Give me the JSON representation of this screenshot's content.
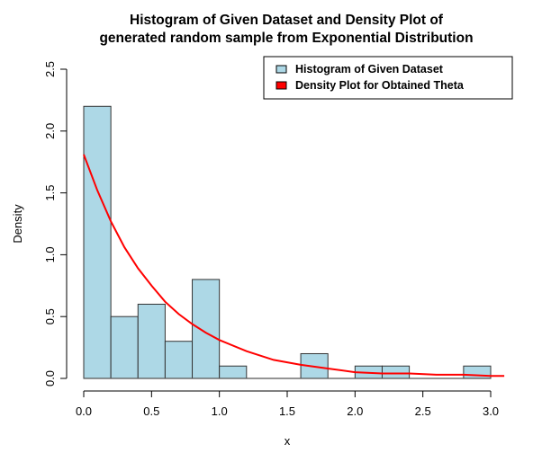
{
  "chart_data": {
    "type": "bar",
    "title": [
      "Histogram of Given Dataset and Density Plot of",
      "generated random sample from Exponential Distribution"
    ],
    "xlabel": "x",
    "ylabel": "Density",
    "xlim": [
      0,
      3.1
    ],
    "ylim": [
      0,
      2.5
    ],
    "x_ticks": [
      0.0,
      0.5,
      1.0,
      1.5,
      2.0,
      2.5,
      3.0
    ],
    "x_tick_labels": [
      "0.0",
      "0.5",
      "1.0",
      "1.5",
      "2.0",
      "2.5",
      "3.0"
    ],
    "y_ticks": [
      0.0,
      0.5,
      1.0,
      1.5,
      2.0,
      2.5
    ],
    "y_tick_labels": [
      "0.0",
      "0.5",
      "1.0",
      "1.5",
      "2.0",
      "2.5"
    ],
    "grid": false,
    "legend_position": "top-right",
    "series": [
      {
        "name": "Histogram of Given Dataset",
        "kind": "histogram",
        "color": "#add8e6",
        "border_color": "#333333",
        "bin_edges": [
          0.0,
          0.2,
          0.4,
          0.6,
          0.8,
          1.0,
          1.2,
          1.4,
          1.6,
          1.8,
          2.0,
          2.2,
          2.4,
          2.6,
          2.8,
          3.0
        ],
        "values": [
          2.2,
          0.5,
          0.6,
          0.3,
          0.8,
          0.1,
          0.0,
          0.0,
          0.2,
          0.0,
          0.1,
          0.1,
          0.0,
          0.0,
          0.1
        ]
      },
      {
        "name": "Density Plot for Obtained Theta",
        "kind": "line",
        "color": "#ff0000",
        "x": [
          0.0,
          0.1,
          0.2,
          0.3,
          0.4,
          0.5,
          0.6,
          0.7,
          0.8,
          0.9,
          1.0,
          1.2,
          1.4,
          1.6,
          1.8,
          2.0,
          2.2,
          2.4,
          2.6,
          2.8,
          3.0,
          3.1
        ],
        "y": [
          1.81,
          1.52,
          1.27,
          1.06,
          0.89,
          0.75,
          0.62,
          0.52,
          0.44,
          0.37,
          0.31,
          0.22,
          0.15,
          0.11,
          0.08,
          0.05,
          0.04,
          0.04,
          0.03,
          0.03,
          0.02,
          0.02
        ]
      }
    ]
  }
}
